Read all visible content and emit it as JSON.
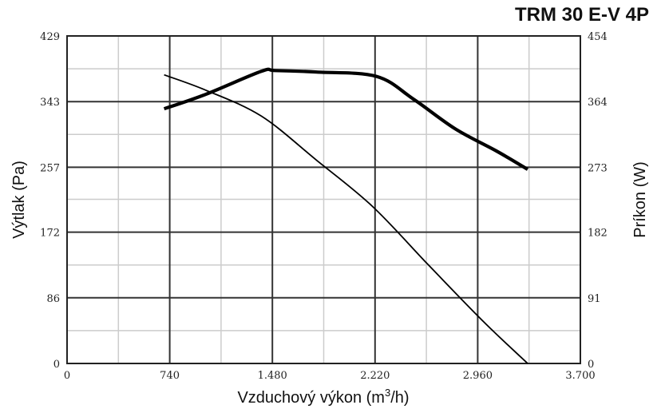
{
  "chart_data": {
    "type": "line",
    "title": "TRM 30 E-V 4P",
    "xlabel": "Vzduchový výkon (m",
    "xlabel_sup": "3",
    "xlabel_tail": "/h)",
    "ylabel_left": "Výtlak (Pa)",
    "ylabel_right": "Príkon (W)",
    "xlim": [
      0,
      3700
    ],
    "ylim_left": [
      0,
      429
    ],
    "ylim_right": [
      0,
      454
    ],
    "x_major_ticks": [
      0,
      740,
      1480,
      2220,
      2960,
      3700
    ],
    "x_tick_labels": [
      "0",
      "740",
      "1.480",
      "2.220",
      "2.960",
      "3.700"
    ],
    "x_minor_ticks": [
      370,
      1110,
      1850,
      2590,
      3330
    ],
    "y_left_ticks": [
      0,
      86,
      172,
      257,
      343,
      429
    ],
    "y_left_tick_labels": [
      "0",
      "86",
      "172",
      "257",
      "343",
      "429"
    ],
    "y_right_tick_labels": [
      "0",
      "91",
      "182",
      "273",
      "364",
      "454"
    ],
    "y_minor_ticks_left": [
      43,
      129,
      215,
      300,
      386
    ],
    "grid": true,
    "series": [
      {
        "axis": "left",
        "stroke_width": 1.8,
        "x": [
          700,
          1000,
          1400,
          1800,
          2200,
          2600,
          3000,
          3320
        ],
        "y": [
          378,
          358,
          324,
          266,
          206,
          130,
          55,
          0
        ]
      },
      {
        "axis": "right",
        "stroke_width": 4.2,
        "x": [
          700,
          1000,
          1400,
          1500,
          1800,
          2230,
          2500,
          2800,
          3100,
          3320
        ],
        "y": [
          353,
          373,
          405,
          406,
          404,
          398,
          366,
          325,
          294,
          269
        ]
      }
    ]
  }
}
